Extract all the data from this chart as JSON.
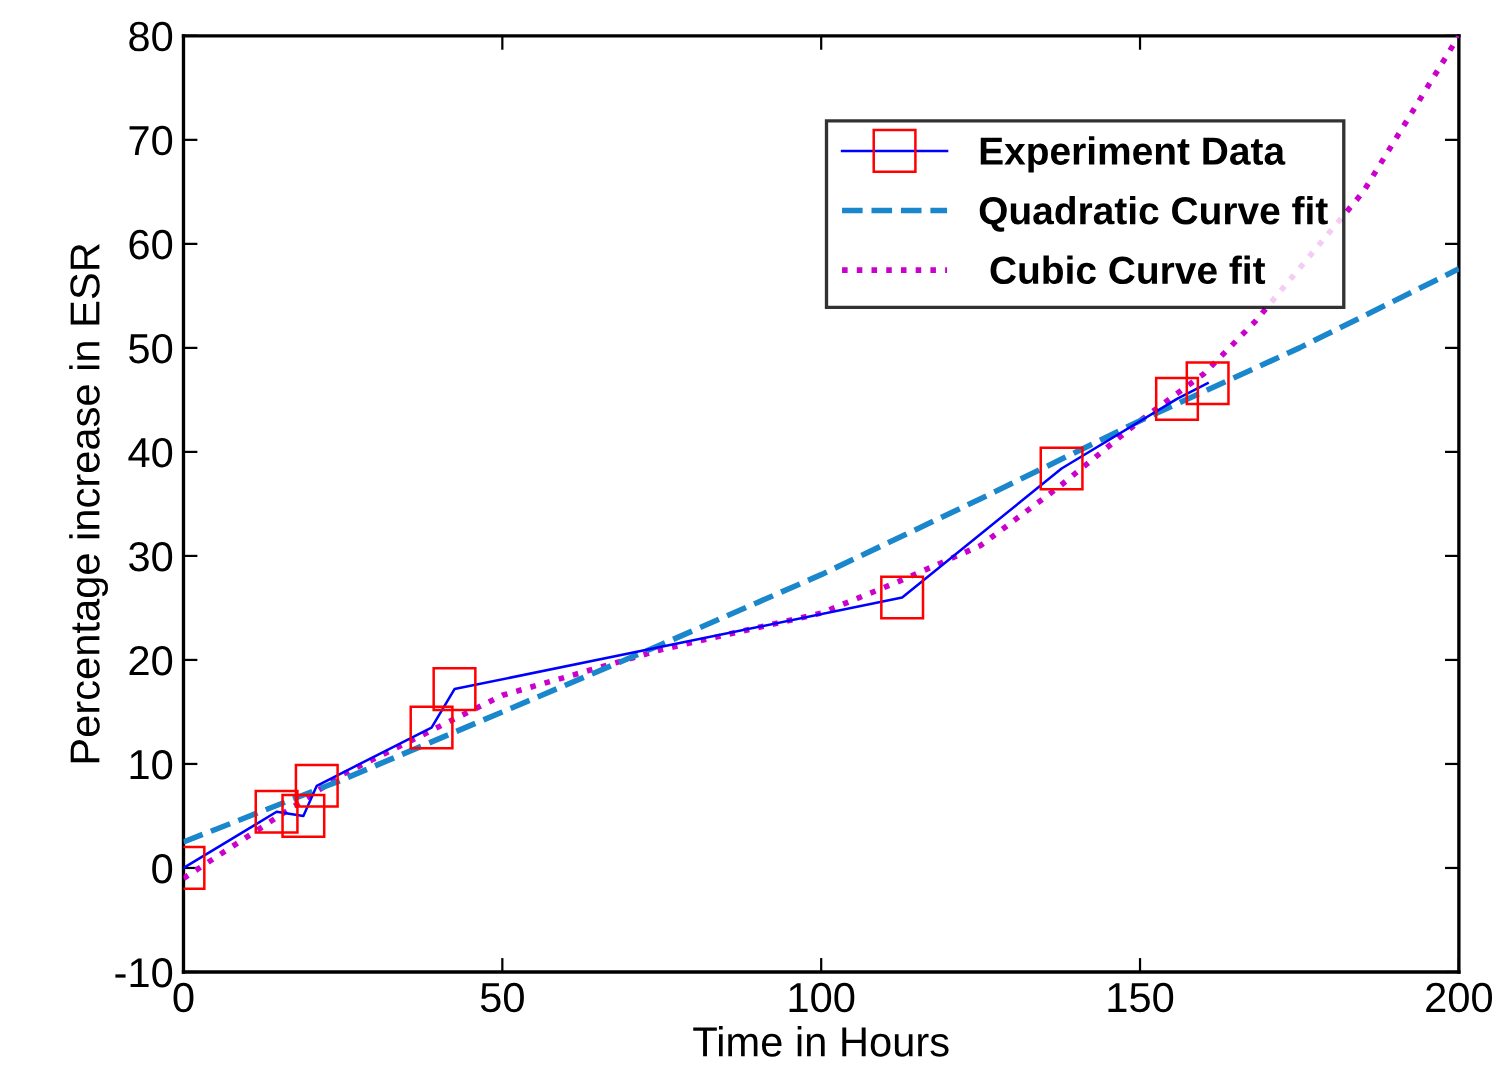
{
  "chart_data": {
    "type": "line",
    "xlabel": "Time in Hours",
    "ylabel": "Percentage increase in ESR",
    "xlim": [
      0,
      200
    ],
    "xticks": [
      0,
      50,
      100,
      150,
      200
    ],
    "ylim": [
      -10,
      80
    ],
    "yticks": [
      -10,
      0,
      10,
      20,
      30,
      40,
      50,
      60,
      70,
      80
    ],
    "grid": false,
    "legend": "top right",
    "series": [
      {
        "name": "Experiment Data",
        "color": "#0000ff",
        "colors": [
          "#ff0000",
          "#ff0000",
          "#ff0000",
          "#ff0000",
          "#ff0000",
          "#ff0000",
          "#ff0000",
          "#ff0000",
          "#ff0000",
          "#ff0000"
        ],
        "marker": "square",
        "line_style": "solid",
        "x": [
          0,
          14.6,
          18.8,
          20.9,
          38.9,
          42.5,
          112.7,
          137.7,
          155.8,
          160.6
        ],
        "values": [
          0,
          5.4,
          5.0,
          7.9,
          13.5,
          17.2,
          26.0,
          38.4,
          45.1,
          46.6
        ]
      },
      {
        "name": "Quadratic Curve fit",
        "color": "#1a86cc",
        "marker": "none",
        "line_style": "dashed",
        "x": [
          0,
          25,
          50,
          75,
          100,
          125,
          150,
          175,
          200
        ],
        "values": [
          2.5,
          8.5,
          15,
          21.5,
          28.2,
          35.5,
          43,
          50,
          57.6
        ]
      },
      {
        "name": " Cubic Curve fit",
        "color": "#cc00cc",
        "marker": "none",
        "line_style": "dotted",
        "x": [
          0,
          25,
          50,
          75,
          100,
          112,
          125,
          137,
          150,
          160,
          168,
          185,
          200
        ],
        "values": [
          -1,
          9,
          16.6,
          21,
          24.5,
          27.5,
          31,
          36.5,
          43,
          47.5,
          52.5,
          65,
          80
        ]
      }
    ]
  }
}
